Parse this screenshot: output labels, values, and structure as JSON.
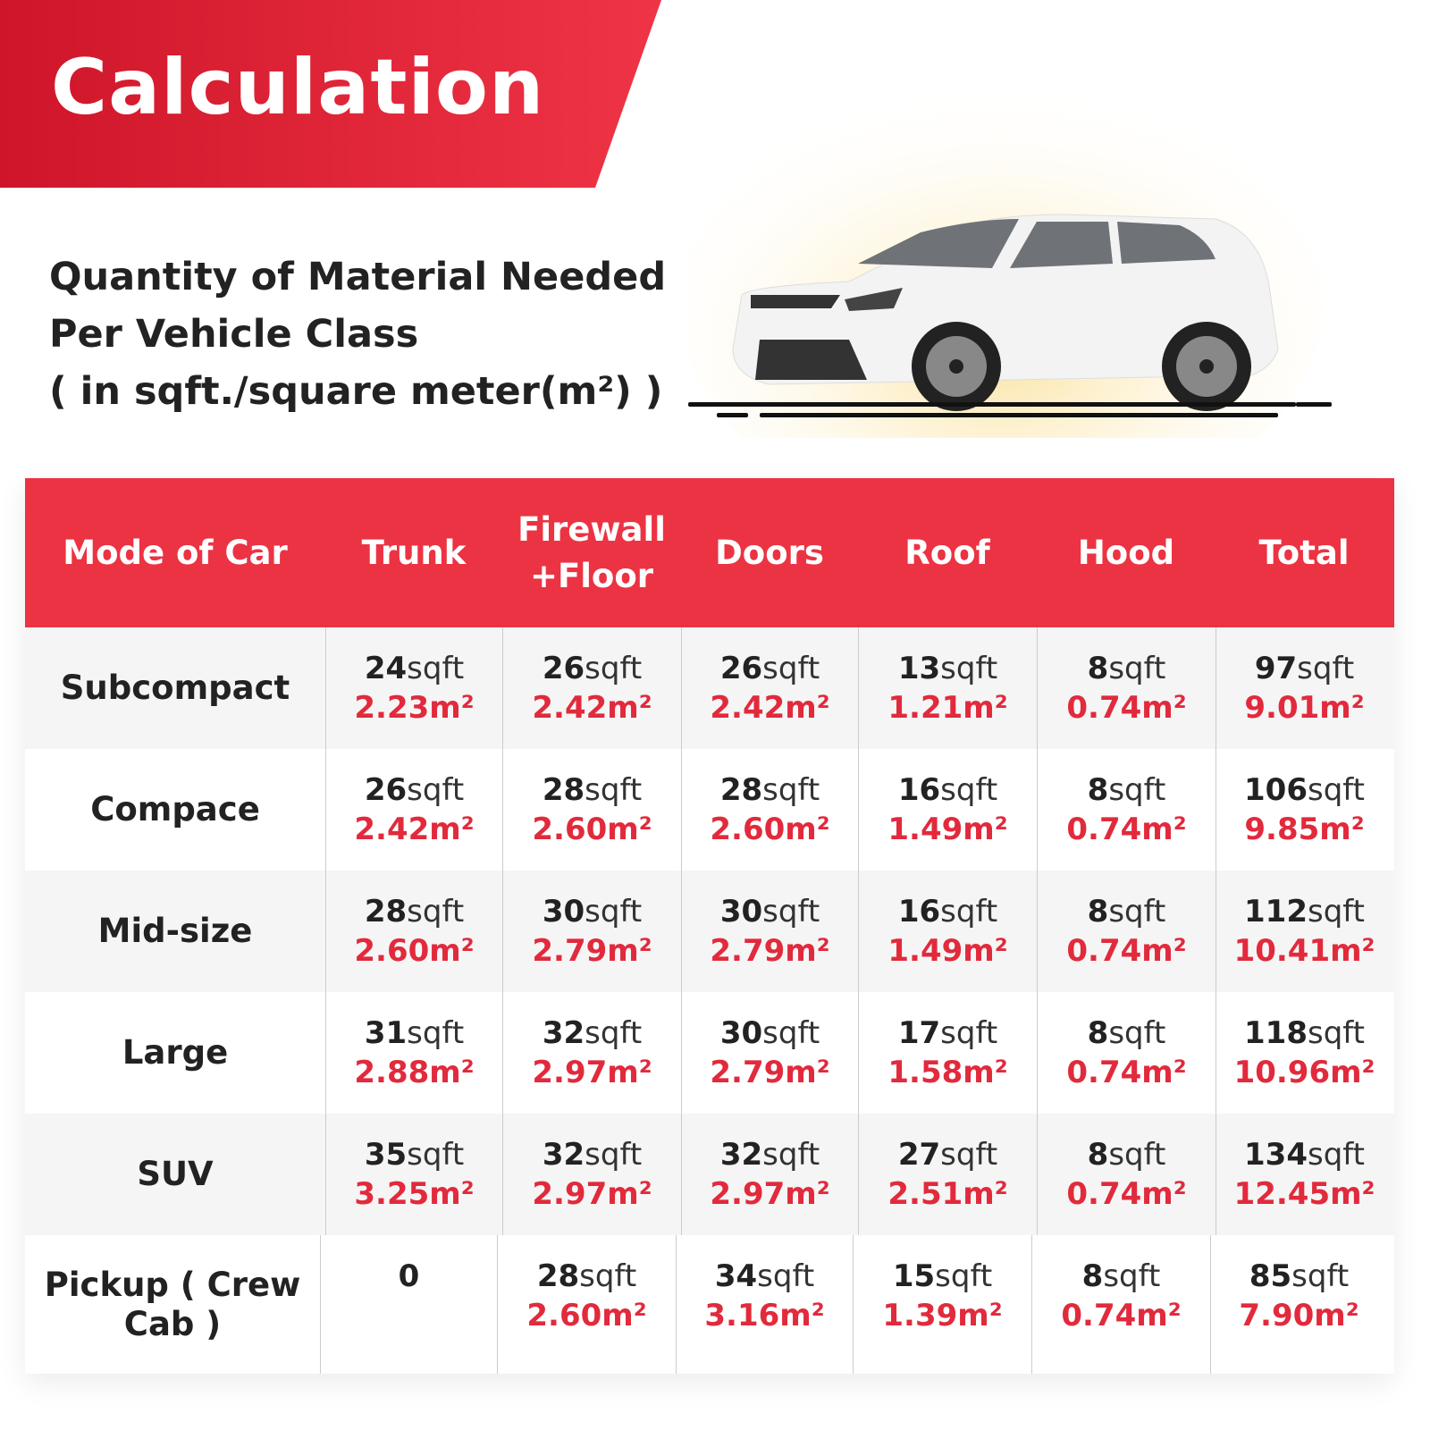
{
  "header": {
    "title": "Calculation"
  },
  "subtitle": {
    "line1": "Quantity of Material Needed",
    "line2": "Per Vehicle Class",
    "line3": "( in sqft./square meter(m²) )"
  },
  "colors": {
    "brand_red": "#ec3344",
    "value_red": "#e22a3d",
    "row_alt": "#f5f5f5"
  },
  "table": {
    "columns": [
      "Mode of Car",
      "Trunk",
      "Firewall +Floor",
      "Doors",
      "Roof",
      "Hood",
      "Total"
    ],
    "sqft_unit": "sqft",
    "rows": [
      {
        "label": "Subcompact",
        "cells": [
          {
            "sqft": "24",
            "m2": "2.23m²"
          },
          {
            "sqft": "26",
            "m2": "2.42m²"
          },
          {
            "sqft": "26",
            "m2": "2.42m²"
          },
          {
            "sqft": "13",
            "m2": "1.21m²"
          },
          {
            "sqft": "8",
            "m2": "0.74m²"
          },
          {
            "sqft": "97",
            "m2": "9.01m²"
          }
        ]
      },
      {
        "label": "Compace",
        "cells": [
          {
            "sqft": "26",
            "m2": "2.42m²"
          },
          {
            "sqft": "28",
            "m2": "2.60m²"
          },
          {
            "sqft": "28",
            "m2": "2.60m²"
          },
          {
            "sqft": "16",
            "m2": "1.49m²"
          },
          {
            "sqft": "8",
            "m2": "0.74m²"
          },
          {
            "sqft": "106",
            "m2": "9.85m²"
          }
        ]
      },
      {
        "label": "Mid-size",
        "cells": [
          {
            "sqft": "28",
            "m2": "2.60m²"
          },
          {
            "sqft": "30",
            "m2": "2.79m²"
          },
          {
            "sqft": "30",
            "m2": "2.79m²"
          },
          {
            "sqft": "16",
            "m2": "1.49m²"
          },
          {
            "sqft": "8",
            "m2": "0.74m²"
          },
          {
            "sqft": "112",
            "m2": "10.41m²"
          }
        ]
      },
      {
        "label": "Large",
        "cells": [
          {
            "sqft": "31",
            "m2": "2.88m²"
          },
          {
            "sqft": "32",
            "m2": "2.97m²"
          },
          {
            "sqft": "30",
            "m2": "2.79m²"
          },
          {
            "sqft": "17",
            "m2": "1.58m²"
          },
          {
            "sqft": "8",
            "m2": "0.74m²"
          },
          {
            "sqft": "118",
            "m2": "10.96m²"
          }
        ]
      },
      {
        "label": "SUV",
        "cells": [
          {
            "sqft": "35",
            "m2": "3.25m²"
          },
          {
            "sqft": "32",
            "m2": "2.97m²"
          },
          {
            "sqft": "32",
            "m2": "2.97m²"
          },
          {
            "sqft": "27",
            "m2": "2.51m²"
          },
          {
            "sqft": "8",
            "m2": "0.74m²"
          },
          {
            "sqft": "134",
            "m2": "12.45m²"
          }
        ]
      },
      {
        "label": "Pickup ( Crew Cab )",
        "cells": [
          {
            "sqft": "0",
            "m2": "",
            "plain": true
          },
          {
            "sqft": "28",
            "m2": "2.60m²"
          },
          {
            "sqft": "34",
            "m2": "3.16m²"
          },
          {
            "sqft": "15",
            "m2": "1.39m²"
          },
          {
            "sqft": "8",
            "m2": "0.74m²"
          },
          {
            "sqft": "85",
            "m2": "7.90m²"
          }
        ]
      }
    ]
  }
}
